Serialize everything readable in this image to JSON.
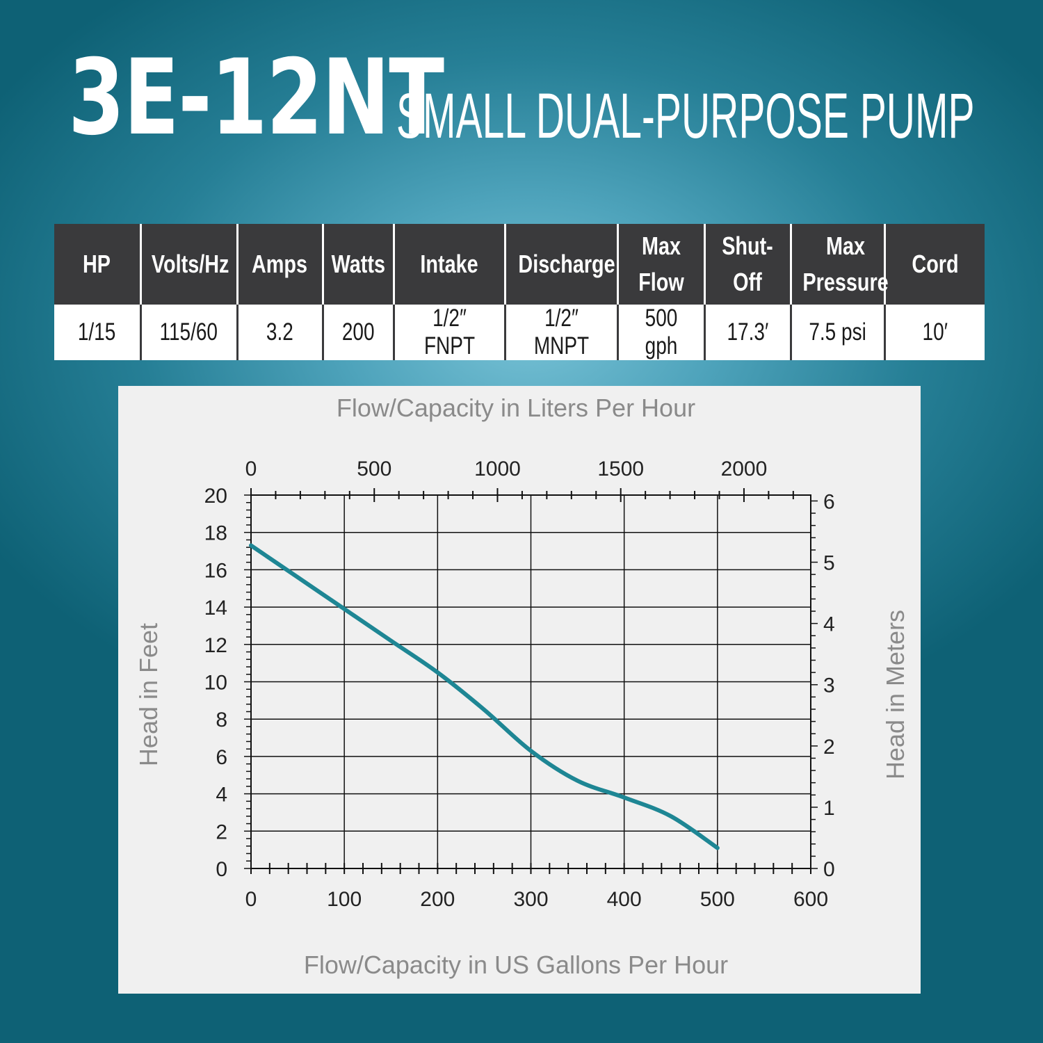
{
  "header": {
    "model": "3E-12NT",
    "description": "SMALL DUAL-PURPOSE PUMP"
  },
  "specs": {
    "headers": [
      [
        "HP"
      ],
      [
        "Volts/Hz"
      ],
      [
        "Amps"
      ],
      [
        "Watts"
      ],
      [
        "Intake"
      ],
      [
        "Discharge"
      ],
      [
        "Max",
        "Flow"
      ],
      [
        "Shut-",
        "Off"
      ],
      [
        "Max",
        "Pressure"
      ],
      [
        "Cord"
      ]
    ],
    "values": [
      "1/15",
      "115/60",
      "3.2",
      "200",
      "1/2″ FNPT",
      "1/2″ MNPT",
      "500 gph",
      "17.3′",
      "7.5 psi",
      "10′"
    ]
  },
  "chart_data": {
    "type": "line",
    "xlabel": "Flow/Capacity in US Gallons Per Hour",
    "x2label": "Flow/Capacity in Liters Per Hour",
    "ylabel": "Head in Feet",
    "y2label": "Head in Meters",
    "xlim": [
      0,
      600
    ],
    "ylim": [
      0,
      20
    ],
    "x2lim": [
      0,
      2271
    ],
    "y2lim": [
      0,
      6.096
    ],
    "x_ticks": [
      0,
      100,
      200,
      300,
      400,
      500,
      600
    ],
    "y_ticks": [
      0,
      2,
      4,
      6,
      8,
      10,
      12,
      14,
      16,
      18,
      20
    ],
    "x2_ticks": [
      0,
      500,
      1000,
      1500,
      2000
    ],
    "y2_ticks": [
      0,
      1,
      2,
      3,
      4,
      5,
      6
    ],
    "grid": true,
    "line_color": "#1e8694",
    "series": [
      {
        "x": [
          0,
          50,
          100,
          150,
          200,
          250,
          300,
          350,
          400,
          450,
          500
        ],
        "y": [
          17.3,
          15.6,
          13.9,
          12.2,
          10.5,
          8.5,
          6.3,
          4.7,
          3.8,
          2.8,
          1.1
        ]
      }
    ]
  }
}
